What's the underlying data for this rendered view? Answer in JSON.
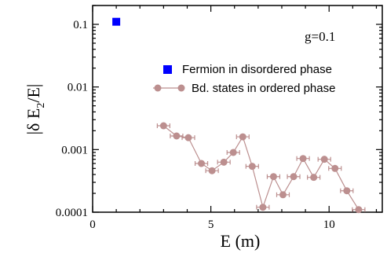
{
  "chart_data": {
    "type": "scatter",
    "xlabel": "E (m)",
    "ylabel": "|δ E₂/E|",
    "ylabel_parts": {
      "pre": "|δ E",
      "sub": "2",
      "post": "/E|"
    },
    "annotation": "g=0.1",
    "xlim": [
      0,
      12.25
    ],
    "ylim": [
      0.0001,
      0.2
    ],
    "yscale": "log",
    "x_ticks": [
      0,
      5,
      10
    ],
    "x_tick_labels": [
      "0",
      "5",
      "10"
    ],
    "y_ticks": [
      0.0001,
      0.001,
      0.01,
      0.1
    ],
    "y_tick_labels": [
      "0.0001",
      "0.001",
      "0.01",
      "0.1"
    ],
    "grid": false,
    "legend_position": "upper-right",
    "series": [
      {
        "name": "Fermion in disordered phase",
        "marker": "square",
        "color": "#0000ff",
        "line": false,
        "x": [
          1.0
        ],
        "y": [
          0.11
        ]
      },
      {
        "name": "Bd. states in ordered phase",
        "marker": "circle",
        "color": "#bc8f8f",
        "line": true,
        "x": [
          3.0,
          3.55,
          4.05,
          4.6,
          5.05,
          5.55,
          5.95,
          6.35,
          6.75,
          7.2,
          7.65,
          8.05,
          8.5,
          8.9,
          9.35,
          9.8,
          10.25,
          10.75,
          11.25
        ],
        "y": [
          0.0024,
          0.00165,
          0.00155,
          0.0006,
          0.00046,
          0.00063,
          0.0009,
          0.0016,
          0.00054,
          0.00012,
          0.00037,
          0.00019,
          0.00037,
          0.00072,
          0.00036,
          0.0007,
          0.0005,
          0.00022,
          0.00011
        ]
      }
    ]
  }
}
